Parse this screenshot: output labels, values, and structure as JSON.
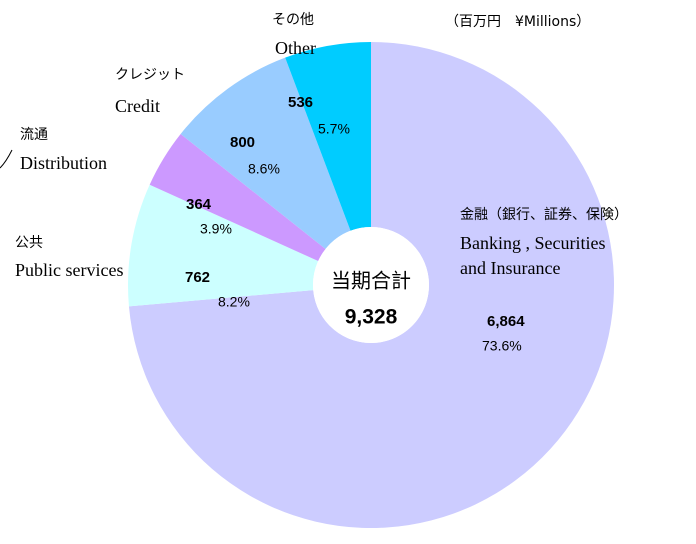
{
  "chart_data": {
    "type": "donut",
    "unit_note": "（百万円　¥Millions）",
    "center_label": "当期合計",
    "center_total": "9,328",
    "categories": [
      "金融（銀行、証券、保険）",
      "公共",
      "流通",
      "クレジット",
      "その他"
    ],
    "categories_en": [
      [
        "Banking , Securities",
        "and Insurance"
      ],
      [
        "Public services"
      ],
      [
        "Distribution"
      ],
      [
        "Credit"
      ],
      [
        "Other"
      ]
    ],
    "values": [
      6864,
      762,
      364,
      800,
      536
    ],
    "value_labels": [
      "6,864",
      "762",
      "364",
      "800",
      "536"
    ],
    "percentages": [
      73.6,
      8.2,
      3.9,
      8.6,
      5.7
    ],
    "percentage_labels": [
      "73.6%",
      "8.2%",
      "3.9%",
      "8.6%",
      "5.7%"
    ],
    "colors": [
      "#ccccff",
      "#ccffff",
      "#cc99ff",
      "#99ccff",
      "#00ccff"
    ]
  }
}
